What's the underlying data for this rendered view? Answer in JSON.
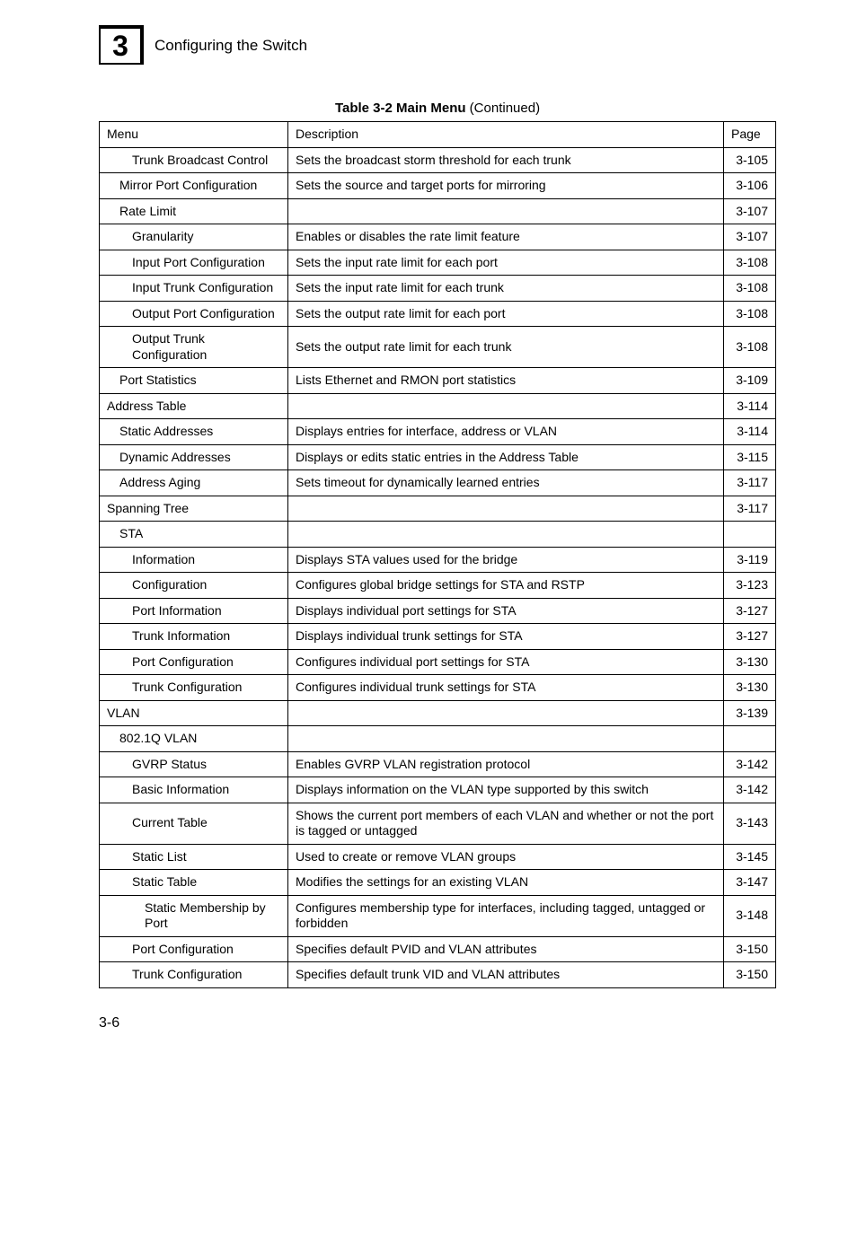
{
  "chapter_number": "3",
  "header_text": "Configuring the Switch",
  "caption_prefix": "Table 3-2  Main Menu",
  "caption_suffix": "  (Continued)",
  "columns": {
    "menu": "Menu",
    "description": "Description",
    "page": "Page"
  },
  "footer_page": "3-6",
  "colors": {
    "background": "#ffffff",
    "text": "#000000",
    "border": "#000000"
  },
  "rows": [
    {
      "indent": 2,
      "menu": "Trunk Broadcast Control",
      "desc": "Sets the broadcast storm threshold for each trunk",
      "page": "3-105"
    },
    {
      "indent": 1,
      "menu": "Mirror Port Configuration",
      "desc": "Sets the source and target ports for mirroring",
      "page": "3-106"
    },
    {
      "indent": 1,
      "menu": "Rate Limit",
      "desc": "",
      "page": "3-107"
    },
    {
      "indent": 2,
      "menu": "Granularity",
      "desc": "Enables or disables the rate limit feature",
      "page": "3-107"
    },
    {
      "indent": 2,
      "menu": "Input Port Configuration",
      "desc": "Sets the input rate limit for each port",
      "page": "3-108"
    },
    {
      "indent": 2,
      "menu": "Input Trunk Configuration",
      "desc": "Sets the input rate limit for each trunk",
      "page": "3-108"
    },
    {
      "indent": 2,
      "menu": "Output Port Configuration",
      "desc": "Sets the output rate limit for each port",
      "page": "3-108"
    },
    {
      "indent": 2,
      "menu": "Output Trunk Configuration",
      "desc": "Sets the output rate limit for each trunk",
      "page": "3-108"
    },
    {
      "indent": 1,
      "menu": "Port Statistics",
      "desc": "Lists Ethernet and RMON port statistics",
      "page": "3-109"
    },
    {
      "indent": 0,
      "menu": "Address Table",
      "desc": "",
      "page": "3-114"
    },
    {
      "indent": 1,
      "menu": "Static Addresses",
      "desc": "Displays entries for interface, address or VLAN",
      "page": "3-114"
    },
    {
      "indent": 1,
      "menu": "Dynamic Addresses",
      "desc": "Displays or edits static entries in the Address Table",
      "page": "3-115"
    },
    {
      "indent": 1,
      "menu": "Address Aging",
      "desc": "Sets timeout for dynamically learned entries",
      "page": "3-117"
    },
    {
      "indent": 0,
      "menu": "Spanning Tree",
      "desc": "",
      "page": "3-117"
    },
    {
      "indent": 1,
      "menu": "STA",
      "desc": "",
      "page": ""
    },
    {
      "indent": 2,
      "menu": "Information",
      "desc": "Displays STA values used for the bridge",
      "page": "3-119"
    },
    {
      "indent": 2,
      "menu": "Configuration",
      "desc": "Configures global bridge settings for STA and RSTP",
      "page": "3-123"
    },
    {
      "indent": 2,
      "menu": "Port Information",
      "desc": "Displays individual port settings for STA",
      "page": "3-127"
    },
    {
      "indent": 2,
      "menu": "Trunk Information",
      "desc": "Displays individual trunk settings for STA",
      "page": "3-127"
    },
    {
      "indent": 2,
      "menu": "Port Configuration",
      "desc": "Configures individual port settings for STA",
      "page": "3-130"
    },
    {
      "indent": 2,
      "menu": "Trunk Configuration",
      "desc": "Configures individual trunk settings for STA",
      "page": "3-130"
    },
    {
      "indent": 0,
      "menu": "VLAN",
      "desc": "",
      "page": "3-139"
    },
    {
      "indent": 1,
      "menu": "802.1Q VLAN",
      "desc": "",
      "page": ""
    },
    {
      "indent": 2,
      "menu": "GVRP Status",
      "desc": "Enables GVRP VLAN registration protocol",
      "page": "3-142"
    },
    {
      "indent": 2,
      "menu": "Basic Information",
      "desc": "Displays information on the VLAN type supported by this switch",
      "page": "3-142"
    },
    {
      "indent": 2,
      "menu": "Current Table",
      "desc": "Shows the current port members of each VLAN and whether or not the port is tagged or untagged",
      "page": "3-143"
    },
    {
      "indent": 2,
      "menu": "Static List",
      "desc": "Used to create or remove VLAN groups",
      "page": "3-145"
    },
    {
      "indent": 2,
      "menu": "Static Table",
      "desc": "Modifies the settings for an existing VLAN",
      "page": "3-147"
    },
    {
      "indent": 3,
      "menu": "Static Membership by Port",
      "desc": "Configures membership type for interfaces, including tagged, untagged or forbidden",
      "page": "3-148"
    },
    {
      "indent": 2,
      "menu": "Port Configuration",
      "desc": "Specifies default PVID and VLAN attributes",
      "page": "3-150"
    },
    {
      "indent": 2,
      "menu": "Trunk Configuration",
      "desc": "Specifies default trunk VID and VLAN attributes",
      "page": "3-150"
    }
  ]
}
